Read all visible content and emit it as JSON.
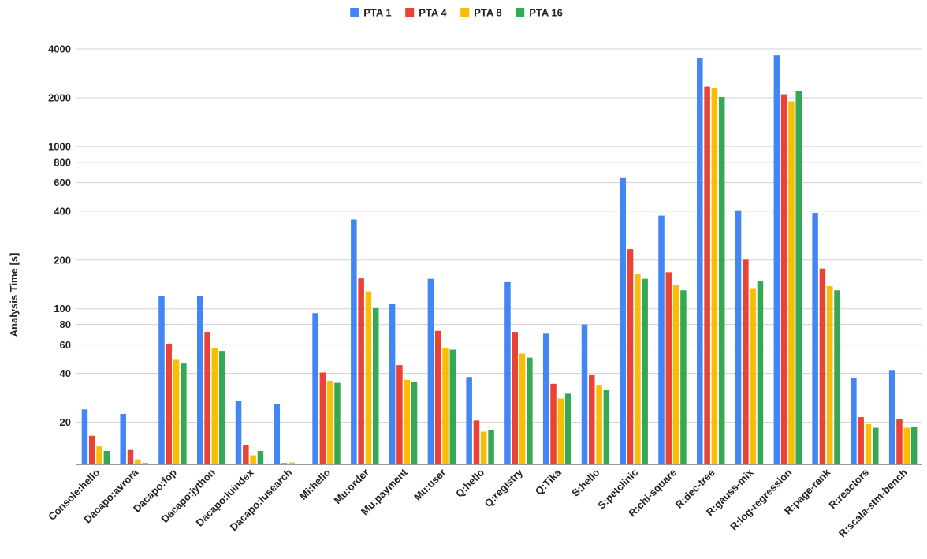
{
  "chart_data": {
    "type": "bar",
    "ylabel": "Analysis Time [s]",
    "xlabel": "",
    "scale": "log",
    "ylim": [
      11,
      4000
    ],
    "yticks": [
      20,
      40,
      60,
      80,
      100,
      200,
      400,
      600,
      800,
      1000,
      2000,
      4000
    ],
    "grid": true,
    "legend_position": "top-center",
    "categories": [
      "Console:hello",
      "Dacapo:avrora",
      "Dacapo:fop",
      "Dacapo:jython",
      "Dacapo:luindex",
      "Dacapo:lusearch",
      "Mi:hello",
      "Mu:order",
      "Mu:payment",
      "Mu:user",
      "Q:hello",
      "Q:registry",
      "Q:Tika",
      "S:hello",
      "S:petclinic",
      "R:chi-square",
      "R:dec-tree",
      "R:gauss-mix",
      "R:log-regression",
      "R:page-rank",
      "R:reactors",
      "R:scala-stm-bench"
    ],
    "series": [
      {
        "name": "PTA 1",
        "color": "#4285F4",
        "values": [
          24,
          22.5,
          120,
          120,
          27,
          26,
          94,
          355,
          107,
          153,
          38,
          146,
          71,
          80,
          640,
          375,
          3500,
          405,
          3650,
          390,
          37.5,
          42
        ]
      },
      {
        "name": "PTA 4",
        "color": "#EA4335",
        "values": [
          16.5,
          13.5,
          61,
          72,
          14.5,
          11.2,
          40.5,
          154,
          45,
          73,
          20.5,
          72,
          34.5,
          39,
          233,
          168,
          2350,
          201,
          2100,
          177,
          21.5,
          21
        ]
      },
      {
        "name": "PTA 8",
        "color": "#FBBC04",
        "values": [
          14.2,
          11.8,
          49,
          57,
          12.5,
          11.3,
          36,
          128,
          36.5,
          57,
          17.5,
          53,
          28,
          34,
          163,
          141,
          2300,
          134,
          1900,
          138,
          19.5,
          18.5
        ]
      },
      {
        "name": "PTA 16",
        "color": "#34A853",
        "values": [
          13.3,
          11.2,
          46,
          55,
          13.3,
          11.1,
          35,
          101,
          35.5,
          56,
          17.8,
          50,
          30,
          31.5,
          153,
          130,
          2020,
          148,
          2200,
          130,
          18.5,
          18.7
        ]
      }
    ]
  }
}
